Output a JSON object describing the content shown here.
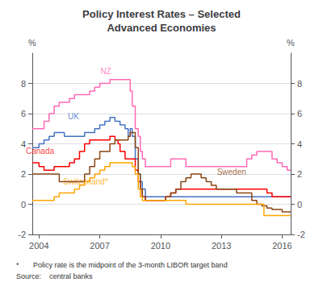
{
  "chart_data": {
    "type": "step",
    "title": "Policy Interest Rates – Selected\nAdvanced Economies",
    "ylabel": "%",
    "y2label": "%",
    "xlim": [
      2003.67,
      2016.42
    ],
    "xticks": [
      2004,
      2007,
      2010,
      2013,
      2016
    ],
    "ylim": [
      -2,
      10
    ],
    "yticks": [
      -2,
      0,
      2,
      4,
      6,
      8
    ],
    "y2lim": [
      -2,
      10
    ],
    "y2ticks": [
      -2,
      0,
      2,
      4,
      6,
      8
    ],
    "grid": true,
    "footnotes": [
      "*       Policy rate is the midpoint of the 3-month LIBOR target band",
      "Source:    central banks"
    ],
    "annotations": [
      {
        "text": "NZ",
        "x": 2007.3,
        "y": 8.55,
        "color": "#FF69B4"
      },
      {
        "text": "UK",
        "x": 2005.7,
        "y": 5.55,
        "color": "#4472C4"
      },
      {
        "text": "Canada",
        "x": 2004.05,
        "y": 3.25,
        "color": "#FF0000"
      },
      {
        "text": "Sweden",
        "x": 2013.5,
        "y": 1.85,
        "color": "#8B4513"
      },
      {
        "text": "Switzerland*",
        "x": 2006.3,
        "y": 1.25,
        "color": "#FFA500"
      }
    ],
    "series": [
      {
        "name": "NZ",
        "color": "#FF69B4",
        "x": [
          2003.67,
          2004.0,
          2004.25,
          2004.5,
          2004.75,
          2005.0,
          2005.5,
          2005.75,
          2006.0,
          2006.5,
          2006.75,
          2007.0,
          2007.25,
          2007.5,
          2007.6,
          2007.75,
          2008.0,
          2008.25,
          2008.5,
          2008.6,
          2008.75,
          2008.9,
          2009.0,
          2009.1,
          2009.25,
          2009.5,
          2009.75,
          2010.0,
          2010.25,
          2010.5,
          2010.75,
          2011.0,
          2011.25,
          2011.5,
          2011.75,
          2012.0,
          2012.5,
          2012.75,
          2013.0,
          2013.25,
          2013.5,
          2013.75,
          2014.0,
          2014.25,
          2014.5,
          2014.75,
          2015.0,
          2015.25,
          2015.5,
          2015.75,
          2016.0,
          2016.25,
          2016.42
        ],
        "values": [
          5.0,
          5.0,
          5.5,
          6.0,
          6.5,
          6.75,
          7.0,
          7.25,
          7.25,
          7.5,
          7.75,
          8.0,
          8.0,
          8.25,
          8.25,
          8.25,
          8.25,
          8.25,
          7.5,
          6.5,
          5.0,
          4.5,
          3.5,
          3.0,
          2.5,
          2.5,
          2.5,
          2.5,
          2.5,
          3.0,
          3.0,
          3.0,
          2.5,
          2.5,
          2.5,
          2.5,
          2.5,
          2.5,
          2.5,
          2.5,
          2.5,
          2.5,
          2.5,
          3.0,
          3.25,
          3.5,
          3.5,
          3.5,
          3.0,
          2.75,
          2.5,
          2.25,
          2.25
        ]
      },
      {
        "name": "UK",
        "color": "#4472C4",
        "x": [
          2003.67,
          2004.0,
          2004.25,
          2004.5,
          2004.75,
          2005.0,
          2005.25,
          2005.5,
          2005.75,
          2006.0,
          2006.25,
          2006.5,
          2006.75,
          2007.0,
          2007.25,
          2007.5,
          2007.6,
          2007.75,
          2007.9,
          2008.0,
          2008.25,
          2008.4,
          2008.5,
          2008.6,
          2008.75,
          2008.9,
          2009.0,
          2009.1,
          2009.25,
          2009.5,
          2016.42
        ],
        "values": [
          3.75,
          4.0,
          4.25,
          4.5,
          4.75,
          4.75,
          4.5,
          4.5,
          4.5,
          4.5,
          4.75,
          4.75,
          5.0,
          5.25,
          5.5,
          5.75,
          5.75,
          5.5,
          5.5,
          5.25,
          5.0,
          4.5,
          5.0,
          4.5,
          3.0,
          2.0,
          1.5,
          1.0,
          0.5,
          0.5,
          0.5
        ]
      },
      {
        "name": "Canada",
        "color": "#FF0000",
        "x": [
          2003.67,
          2004.0,
          2004.25,
          2004.5,
          2004.75,
          2005.0,
          2005.25,
          2005.5,
          2005.75,
          2006.0,
          2006.25,
          2006.5,
          2006.75,
          2007.0,
          2007.25,
          2007.5,
          2007.6,
          2007.75,
          2007.9,
          2008.0,
          2008.25,
          2008.5,
          2008.75,
          2008.9,
          2009.0,
          2009.1,
          2009.25,
          2009.5,
          2010.0,
          2010.25,
          2010.5,
          2010.75,
          2011.0,
          2011.5,
          2015.0,
          2015.25,
          2015.5,
          2015.75,
          2016.0,
          2016.42
        ],
        "values": [
          2.75,
          2.5,
          2.25,
          2.25,
          2.5,
          2.5,
          2.5,
          2.75,
          3.0,
          3.5,
          4.0,
          4.25,
          4.25,
          4.25,
          4.25,
          4.5,
          4.5,
          4.25,
          4.0,
          3.5,
          3.0,
          3.0,
          2.25,
          1.5,
          1.0,
          0.5,
          0.25,
          0.25,
          0.25,
          0.5,
          0.75,
          1.0,
          1.0,
          1.0,
          1.0,
          0.75,
          0.5,
          0.5,
          0.5,
          0.5
        ]
      },
      {
        "name": "Sweden",
        "color": "#8B4513",
        "x": [
          2003.67,
          2004.0,
          2004.25,
          2004.75,
          2005.0,
          2005.25,
          2005.5,
          2005.75,
          2006.0,
          2006.25,
          2006.5,
          2006.75,
          2007.0,
          2007.25,
          2007.5,
          2007.75,
          2007.9,
          2008.0,
          2008.25,
          2008.4,
          2008.5,
          2008.6,
          2008.75,
          2008.9,
          2009.0,
          2009.1,
          2009.25,
          2009.5,
          2009.75,
          2010.0,
          2010.25,
          2010.5,
          2010.75,
          2011.0,
          2011.25,
          2011.5,
          2011.75,
          2012.0,
          2012.25,
          2012.5,
          2012.75,
          2013.0,
          2013.25,
          2013.5,
          2013.75,
          2014.0,
          2014.25,
          2014.5,
          2014.75,
          2015.0,
          2015.25,
          2015.5,
          2015.75,
          2016.0,
          2016.42
        ],
        "values": [
          2.0,
          2.0,
          2.0,
          2.0,
          1.5,
          1.5,
          1.5,
          1.5,
          1.5,
          2.0,
          2.5,
          3.0,
          3.5,
          3.5,
          4.0,
          4.25,
          4.25,
          4.25,
          4.25,
          4.5,
          4.75,
          4.75,
          3.75,
          2.0,
          1.0,
          0.5,
          0.25,
          0.25,
          0.25,
          0.25,
          0.5,
          0.75,
          1.0,
          1.5,
          1.75,
          2.0,
          2.0,
          1.75,
          1.5,
          1.25,
          1.0,
          1.0,
          1.0,
          1.0,
          0.75,
          0.75,
          0.75,
          0.25,
          0.0,
          -0.1,
          -0.25,
          -0.35,
          -0.35,
          -0.5,
          -0.5
        ]
      },
      {
        "name": "Switzerland*",
        "color": "#FFA500",
        "x": [
          2003.67,
          2004.0,
          2004.5,
          2004.75,
          2005.0,
          2005.25,
          2005.5,
          2005.75,
          2006.0,
          2006.25,
          2006.5,
          2006.75,
          2007.0,
          2007.25,
          2007.5,
          2007.75,
          2008.0,
          2008.25,
          2008.5,
          2008.6,
          2008.75,
          2008.9,
          2009.0,
          2009.1,
          2009.25,
          2009.5,
          2009.75,
          2010.0,
          2010.25,
          2010.5,
          2011.0,
          2011.25,
          2011.5,
          2011.75,
          2015.0,
          2015.1,
          2016.42
        ],
        "values": [
          0.25,
          0.25,
          0.25,
          0.5,
          0.75,
          0.75,
          0.75,
          1.0,
          1.25,
          1.5,
          1.75,
          2.0,
          2.25,
          2.5,
          2.75,
          2.75,
          2.75,
          2.75,
          2.75,
          2.5,
          2.0,
          1.0,
          0.5,
          0.25,
          0.25,
          0.25,
          0.25,
          0.25,
          0.25,
          0.25,
          0.25,
          0.0,
          0.0,
          0.0,
          0.0,
          -0.75,
          -0.75
        ]
      }
    ]
  }
}
